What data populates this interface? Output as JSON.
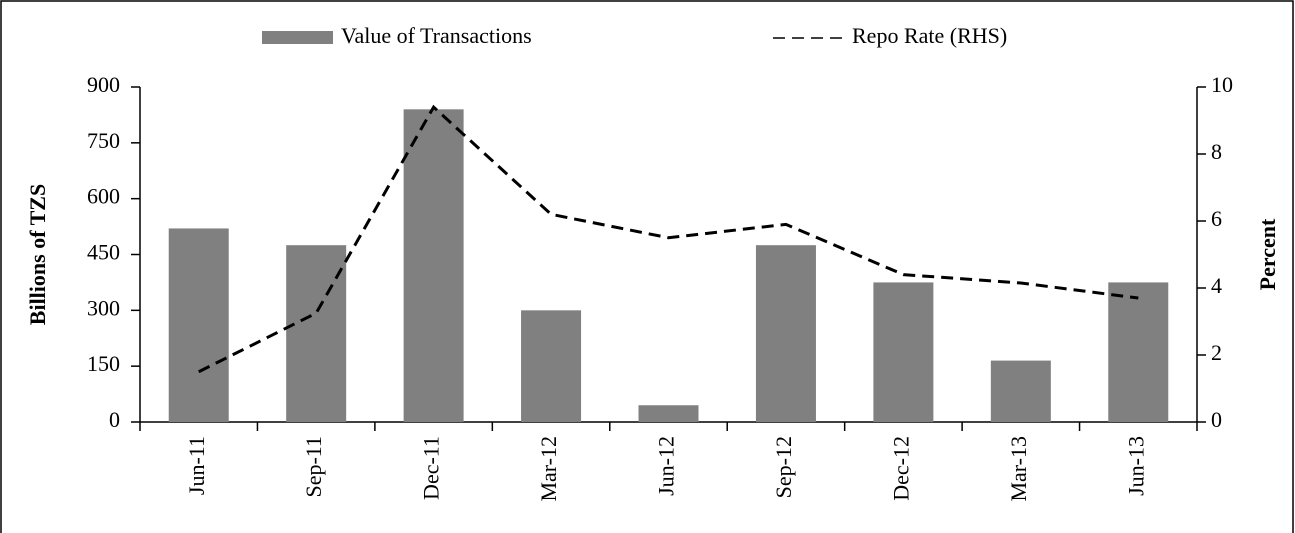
{
  "chart_data": {
    "type": "bar",
    "categories": [
      "Jun-11",
      "Sep-11",
      "Dec-11",
      "Mar-12",
      "Jun-12",
      "Sep-12",
      "Dec-12",
      "Mar-13",
      "Jun-13"
    ],
    "series": [
      {
        "name": "Value of Transactions",
        "type": "bar",
        "color": "#808080",
        "values": [
          520,
          475,
          840,
          300,
          45,
          475,
          375,
          165,
          375
        ]
      },
      {
        "name": "Repo Rate (RHS)",
        "type": "line",
        "axis": "y2",
        "color": "#000000",
        "values": [
          1.5,
          3.25,
          9.4,
          6.2,
          5.5,
          5.9,
          4.4,
          4.15,
          3.7
        ]
      }
    ],
    "ylabel": "Billions of TZS",
    "y2label": "Percent",
    "ylim": [
      0,
      900
    ],
    "yticks": [
      0,
      150,
      300,
      450,
      600,
      750,
      900
    ],
    "y2lim": [
      0,
      10
    ],
    "y2ticks": [
      0,
      2,
      4,
      6,
      8,
      10
    ],
    "legend": "top"
  }
}
